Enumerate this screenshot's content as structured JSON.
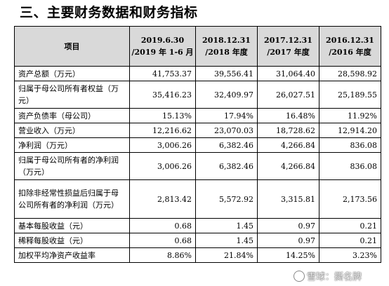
{
  "section_title": "三、主要财务数据和财务指标",
  "table": {
    "header": {
      "item": "项目",
      "periods": [
        {
          "line1": "2019.6.30",
          "line2": "/2019 年 1-6 月"
        },
        {
          "line1": "2018.12.31",
          "line2": "/2018 年度"
        },
        {
          "line1": "2017.12.31",
          "line2": "/2017 年度"
        },
        {
          "line1": "2016.12.31",
          "line2": "/2016 年度"
        }
      ]
    },
    "rows": [
      {
        "label": "资产总额（万元）",
        "values": [
          "41,753.37",
          "39,556.41",
          "31,064.40",
          "28,598.92"
        ]
      },
      {
        "label": "归属于母公司所有者权益（万元）",
        "values": [
          "35,416.23",
          "32,409.97",
          "26,027.51",
          "25,189.55"
        ]
      },
      {
        "label": "资产负债率（母公司）",
        "values": [
          "15.13%",
          "17.94%",
          "16.48%",
          "11.92%"
        ]
      },
      {
        "label": "营业收入（万元）",
        "values": [
          "12,216.62",
          "23,070.03",
          "18,728.62",
          "12,914.20"
        ]
      },
      {
        "label": "净利润（万元）",
        "values": [
          "3,006.26",
          "6,382.46",
          "4,266.84",
          "836.08"
        ]
      },
      {
        "label": "归属于母公司所有者的净利润（万元）",
        "values": [
          "3,006.26",
          "6,382.46",
          "4,266.84",
          "836.08"
        ]
      },
      {
        "label": "扣除非经常性损益后归属于母公司所有者的净利润（万元）",
        "values": [
          "2,813.42",
          "5,572.92",
          "3,315.81",
          "2,173.56"
        ]
      },
      {
        "label": "基本每股收益（元）",
        "values": [
          "0.68",
          "1.45",
          "0.97",
          "0.21"
        ]
      },
      {
        "label": "稀释每股收益（元）",
        "values": [
          "0.68",
          "1.45",
          "0.97",
          "0.21"
        ]
      },
      {
        "label": "加权平均净资产收益率",
        "values": [
          "8.86%",
          "21.84%",
          "14.25%",
          "3.23%"
        ]
      }
    ]
  },
  "watermark": {
    "text": "雪球：撕名牌",
    "icon": "xueqiu-logo-icon"
  }
}
